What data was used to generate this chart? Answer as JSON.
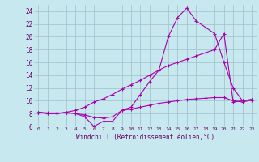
{
  "xlabel": "Windchill (Refroidissement éolien,°C)",
  "bg_color": "#c8e8f0",
  "grid_color": "#9bbfc8",
  "line_color": "#aa00aa",
  "xlim": [
    -0.5,
    23.5
  ],
  "ylim": [
    6,
    25
  ],
  "yticks": [
    6,
    8,
    10,
    12,
    14,
    16,
    18,
    20,
    22,
    24
  ],
  "xticks": [
    0,
    1,
    2,
    3,
    4,
    5,
    6,
    7,
    8,
    9,
    10,
    11,
    12,
    13,
    14,
    15,
    16,
    17,
    18,
    19,
    20,
    21,
    22,
    23
  ],
  "series1_x": [
    0,
    1,
    2,
    3,
    4,
    5,
    6,
    7,
    8,
    9,
    10,
    11,
    12,
    13,
    14,
    15,
    16,
    17,
    18,
    19,
    20,
    21,
    22,
    23
  ],
  "series1_y": [
    8.2,
    8.1,
    8.1,
    8.1,
    8.0,
    7.8,
    7.4,
    7.3,
    7.5,
    8.5,
    8.7,
    9.0,
    9.3,
    9.6,
    9.8,
    10.0,
    10.2,
    10.3,
    10.4,
    10.5,
    10.5,
    10.0,
    9.8,
    10.1
  ],
  "series2_x": [
    0,
    1,
    2,
    3,
    4,
    5,
    6,
    7,
    8,
    9,
    10,
    11,
    12,
    13,
    14,
    15,
    16,
    17,
    18,
    19,
    20,
    21,
    22,
    23
  ],
  "series2_y": [
    8.2,
    8.0,
    8.0,
    8.2,
    8.0,
    7.5,
    6.0,
    6.8,
    6.8,
    8.5,
    9.0,
    11.0,
    13.0,
    14.8,
    20.0,
    23.0,
    24.5,
    22.5,
    21.5,
    20.5,
    16.0,
    12.0,
    10.0,
    10.2
  ],
  "series3_x": [
    0,
    1,
    2,
    3,
    4,
    5,
    6,
    7,
    8,
    9,
    10,
    11,
    12,
    13,
    14,
    15,
    16,
    17,
    18,
    19,
    20,
    21,
    22,
    23
  ],
  "series3_y": [
    8.2,
    8.0,
    8.0,
    8.2,
    8.5,
    9.0,
    9.8,
    10.3,
    11.0,
    11.8,
    12.5,
    13.2,
    14.0,
    14.8,
    15.5,
    16.0,
    16.5,
    17.0,
    17.5,
    18.0,
    20.5,
    9.8,
    10.0,
    10.2
  ]
}
